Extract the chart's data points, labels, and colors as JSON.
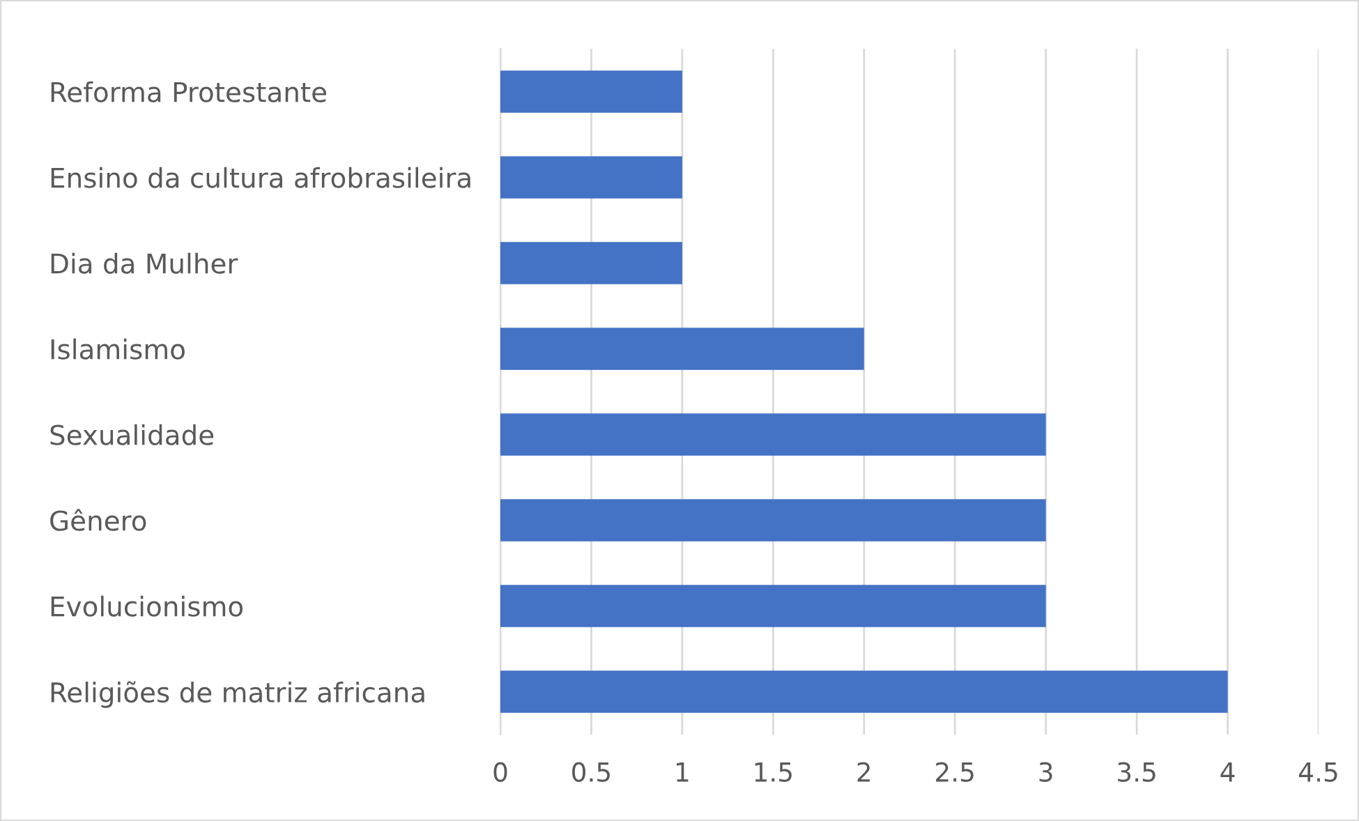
{
  "chart_data": {
    "type": "bar",
    "orientation": "horizontal",
    "categories": [
      "Reforma Protestante",
      "Ensino da cultura afrobrasileira",
      "Dia da Mulher",
      "Islamismo",
      "Sexualidade",
      "Gênero",
      "Evolucionismo",
      "Religiões de matriz africana"
    ],
    "values": [
      1,
      1,
      1,
      2,
      3,
      3,
      3,
      4
    ],
    "color": "#4472c4",
    "xlim": [
      0,
      4.5
    ],
    "xticks": [
      0,
      0.5,
      1,
      1.5,
      2,
      2.5,
      3,
      3.5,
      4,
      4.5
    ],
    "grid": "x",
    "legend": false
  }
}
